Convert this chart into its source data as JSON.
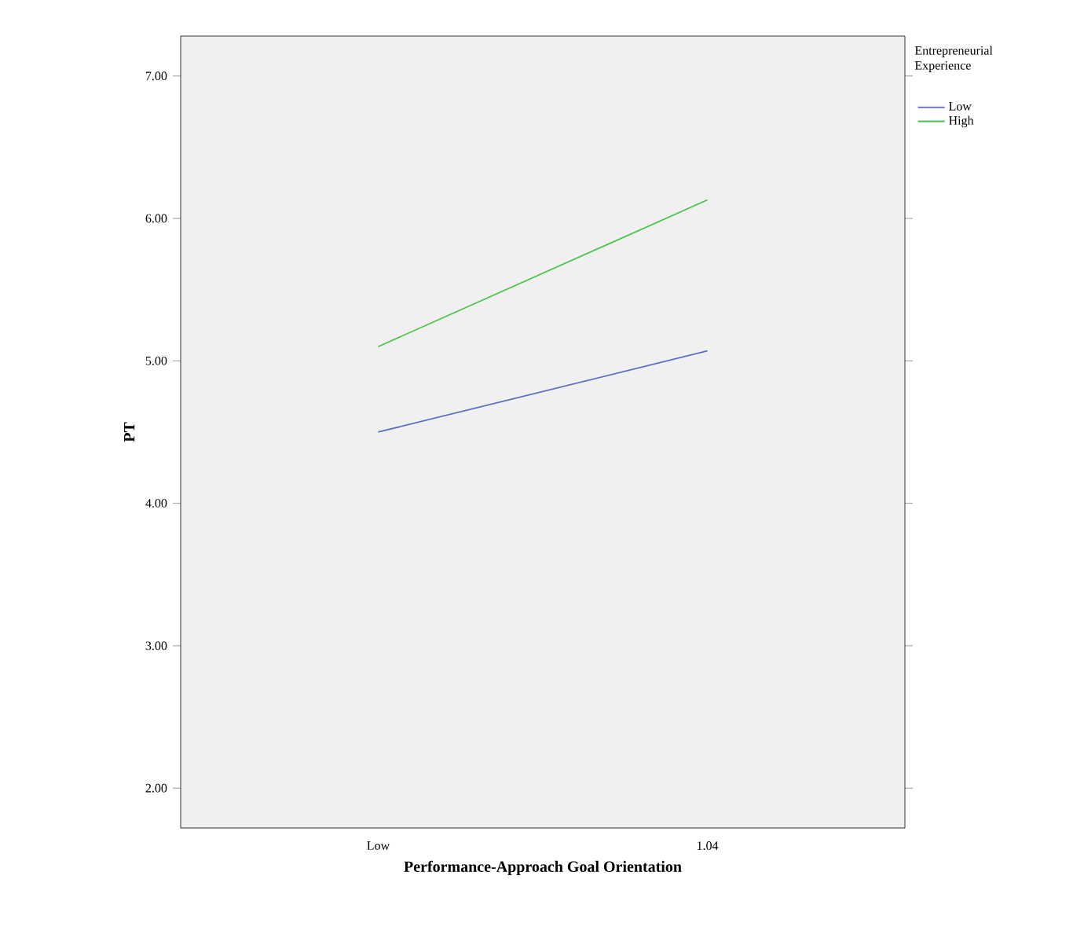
{
  "chart_data": {
    "type": "line",
    "xlabel": "Performance-Approach Goal Orientation",
    "ylabel": "PT",
    "legend_title": "Entrepreneurial Experience",
    "legend": "top right",
    "categories": [
      "Low",
      "1.04"
    ],
    "series": [
      {
        "name": "Low",
        "color": "#5b6fc4",
        "values": [
          4.5,
          5.07
        ]
      },
      {
        "name": "High",
        "color": "#4cc44c",
        "values": [
          5.1,
          6.13
        ]
      }
    ],
    "ylim": [
      1.72,
      7.28
    ],
    "yticks": [
      {
        "value": 2,
        "label": "2.00"
      },
      {
        "value": 3,
        "label": "3.00"
      },
      {
        "value": 4,
        "label": "4.00"
      },
      {
        "value": 5,
        "label": "5.00"
      },
      {
        "value": 6,
        "label": "6.00"
      },
      {
        "value": 7,
        "label": "7.00"
      }
    ]
  }
}
